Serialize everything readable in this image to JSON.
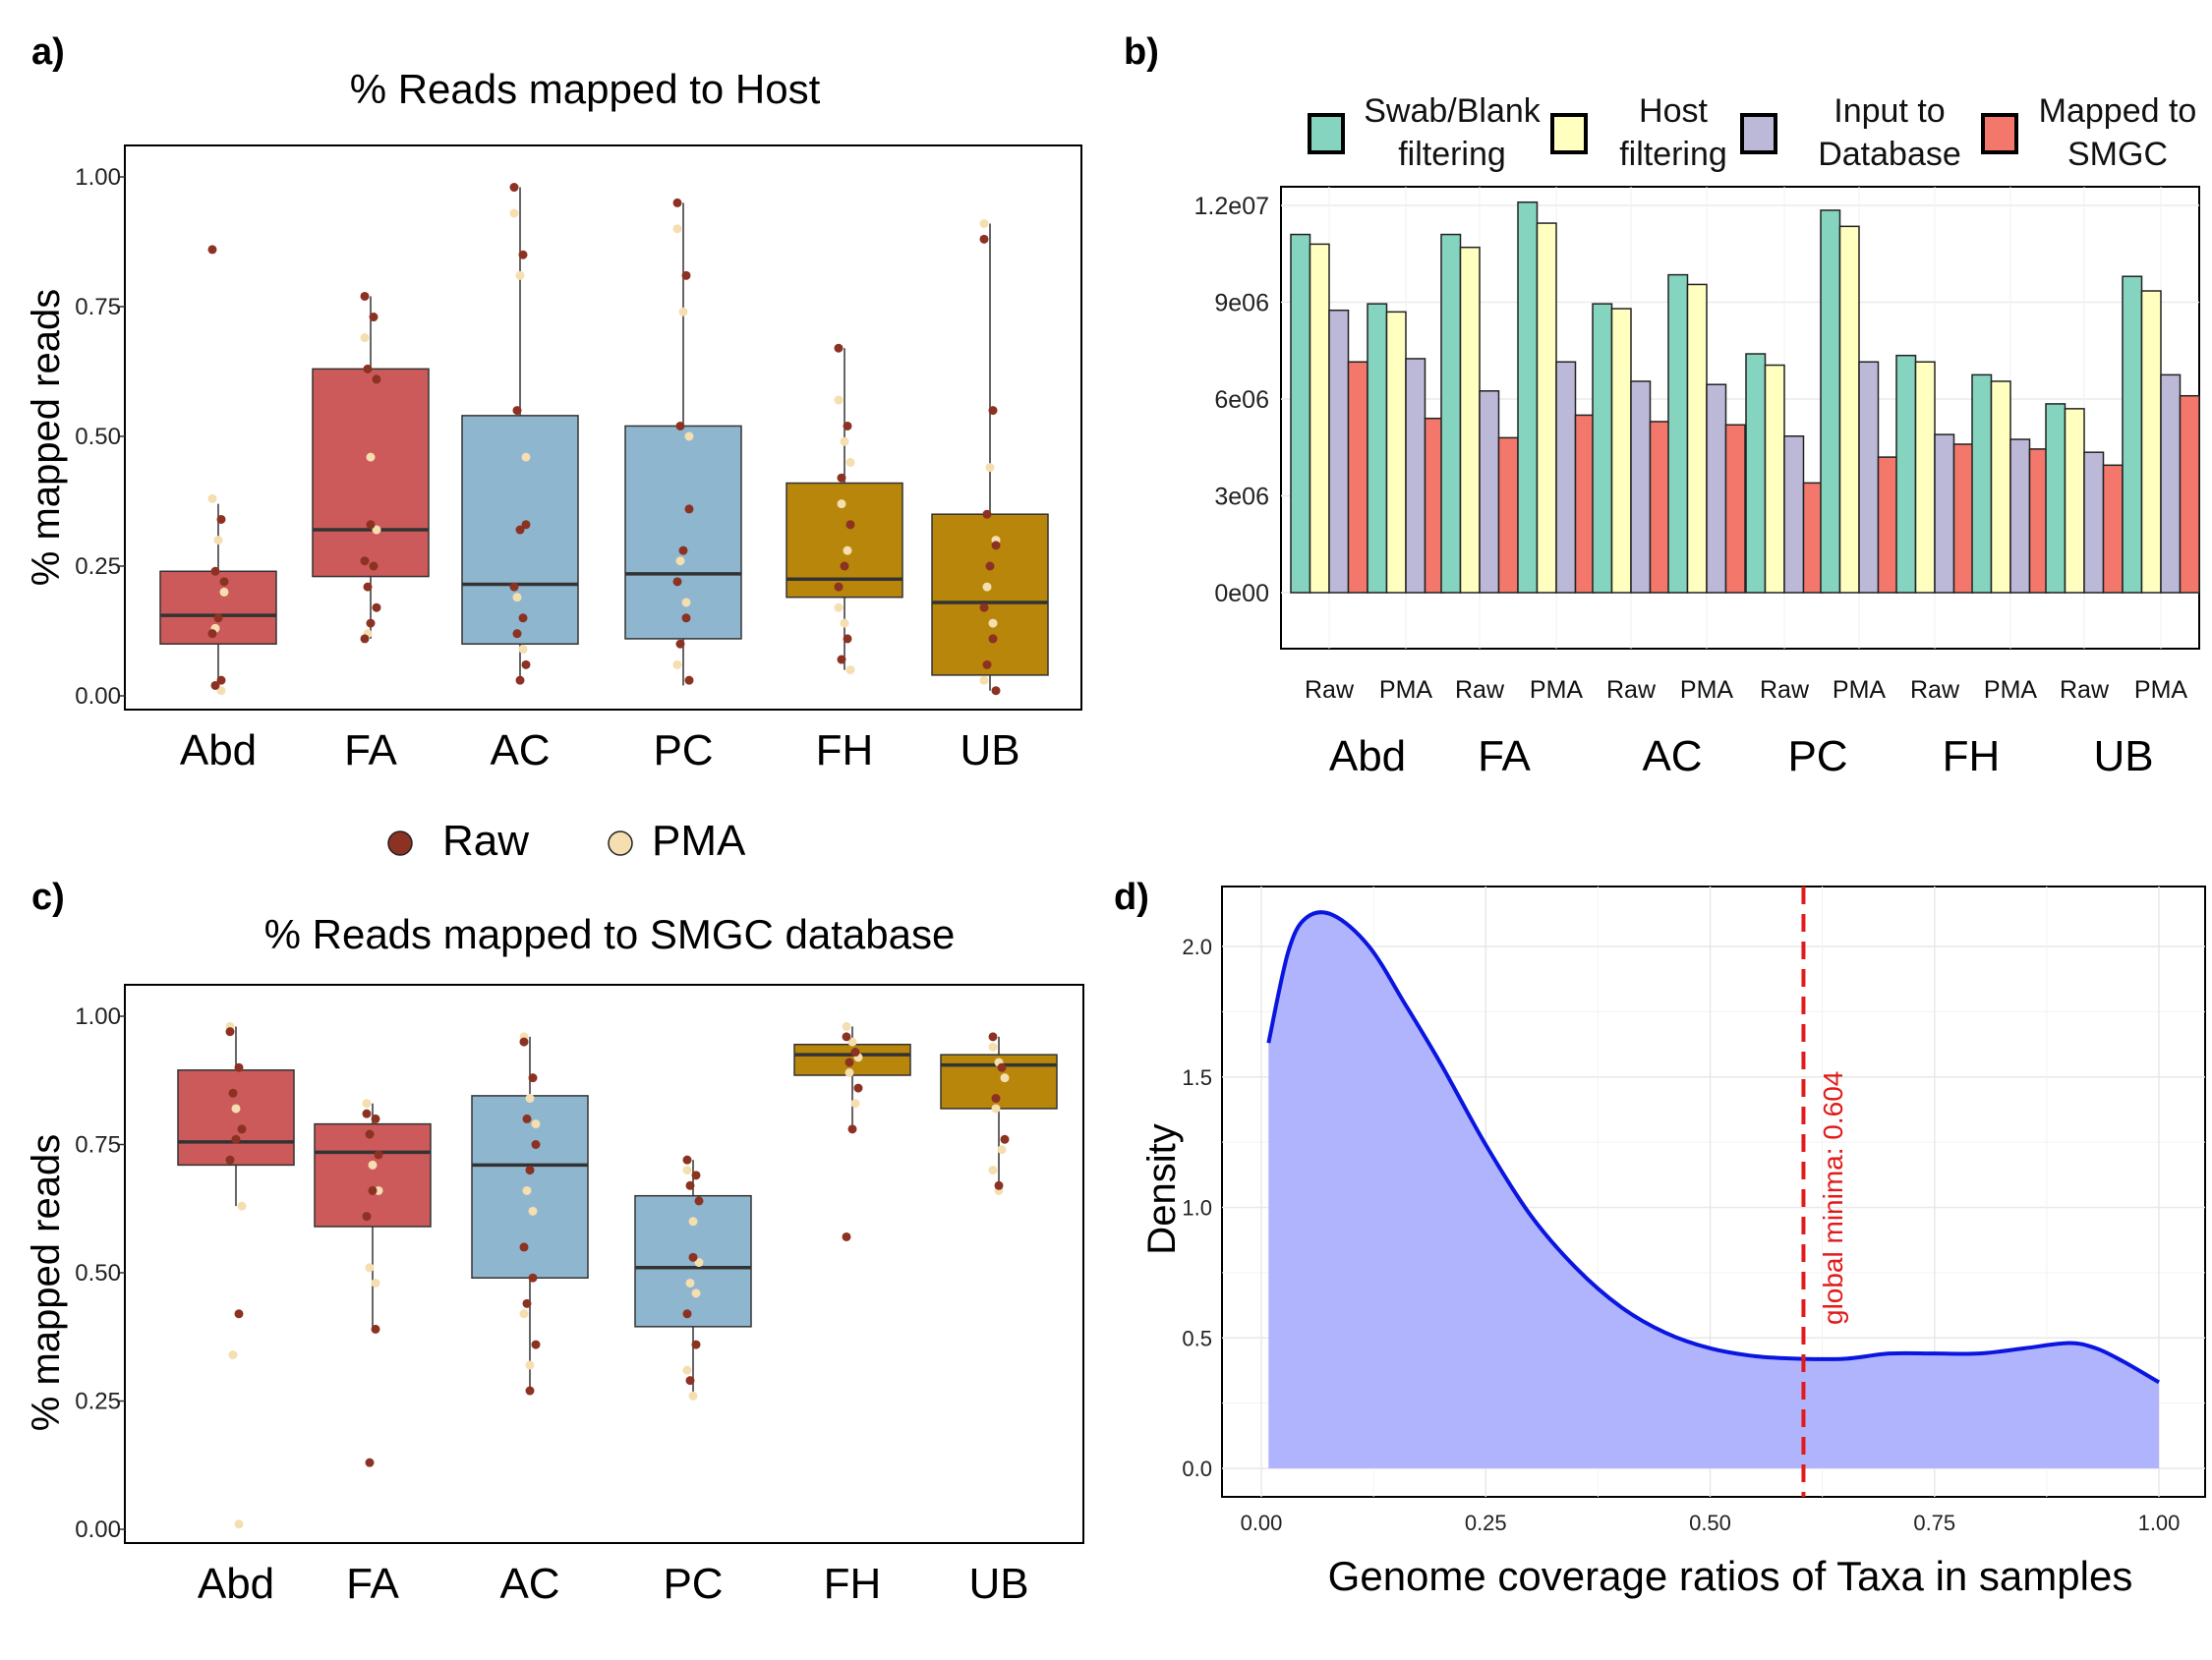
{
  "panels": {
    "a": {
      "label": "a)",
      "title": "% Reads mapped to Host",
      "ylabel": "% mapped reads"
    },
    "b": {
      "label": "b)"
    },
    "c": {
      "label": "c)",
      "title": "% Reads mapped to SMGC database",
      "ylabel": "% mapped reads"
    },
    "d": {
      "label": "d)",
      "xlabel": "Genome coverage ratios of Taxa in samples",
      "ylabel": "Density",
      "annotation": "global minima: 0.604"
    }
  },
  "shared_legend": {
    "items": [
      {
        "label": "Raw",
        "color": "#8b3222"
      },
      {
        "label": "PMA",
        "color": "#f5deb0"
      }
    ]
  },
  "colors": {
    "Abd": "#cc5a5a",
    "FA": "#cc5a5a",
    "AC": "#8fb6cf",
    "PC": "#8fb6cf",
    "FH": "#b8860b",
    "UB": "#b8860b",
    "raw_point": "#8b3222",
    "pma_point": "#f5deb0",
    "swab": "#84d4c0",
    "host": "#ffffc0",
    "input": "#bcb8d8",
    "mapped": "#f4776b",
    "density_fill": "#b0b4fd",
    "density_line": "#0a16e0",
    "vline": "#e21a1a"
  },
  "chart_data": [
    {
      "type": "box",
      "panel": "a",
      "title": "% Reads mapped to Host",
      "ylabel": "% mapped reads",
      "ylim": [
        0,
        1
      ],
      "yticks": [
        0.0,
        0.25,
        0.5,
        0.75,
        1.0
      ],
      "ytick_labels": [
        "0.00",
        "0.25",
        "0.50",
        "0.75",
        "1.00"
      ],
      "categories": [
        "Abd",
        "FA",
        "AC",
        "PC",
        "FH",
        "UB"
      ],
      "boxes": [
        {
          "q1": 0.1,
          "median": 0.155,
          "q3": 0.24,
          "whisker_low": 0.01,
          "whisker_high": 0.37,
          "raw": [
            0.86,
            0.34,
            0.24,
            0.22,
            0.15,
            0.12,
            0.03,
            0.02
          ],
          "pma": [
            0.38,
            0.3,
            0.2,
            0.13,
            0.01
          ]
        },
        {
          "q1": 0.23,
          "median": 0.32,
          "q3": 0.63,
          "whisker_low": 0.11,
          "whisker_high": 0.77,
          "raw": [
            0.77,
            0.73,
            0.63,
            0.61,
            0.33,
            0.26,
            0.25,
            0.21,
            0.17,
            0.14,
            0.11
          ],
          "pma": [
            0.69,
            0.46,
            0.32,
            0.12
          ]
        },
        {
          "q1": 0.1,
          "median": 0.215,
          "q3": 0.54,
          "whisker_low": 0.03,
          "whisker_high": 0.98,
          "raw": [
            0.98,
            0.85,
            0.55,
            0.33,
            0.32,
            0.21,
            0.15,
            0.12,
            0.06,
            0.03
          ],
          "pma": [
            0.93,
            0.81,
            0.46,
            0.19,
            0.09
          ]
        },
        {
          "q1": 0.11,
          "median": 0.235,
          "q3": 0.52,
          "whisker_low": 0.02,
          "whisker_high": 0.95,
          "raw": [
            0.95,
            0.81,
            0.52,
            0.36,
            0.28,
            0.22,
            0.15,
            0.1,
            0.03
          ],
          "pma": [
            0.9,
            0.74,
            0.5,
            0.26,
            0.18,
            0.06
          ]
        },
        {
          "q1": 0.19,
          "median": 0.225,
          "q3": 0.41,
          "whisker_low": 0.05,
          "whisker_high": 0.67,
          "raw": [
            0.67,
            0.52,
            0.42,
            0.33,
            0.25,
            0.21,
            0.11,
            0.07
          ],
          "pma": [
            0.57,
            0.49,
            0.45,
            0.37,
            0.28,
            0.17,
            0.14,
            0.05
          ]
        },
        {
          "q1": 0.04,
          "median": 0.18,
          "q3": 0.35,
          "whisker_low": 0.01,
          "whisker_high": 0.91,
          "raw": [
            0.88,
            0.55,
            0.35,
            0.29,
            0.25,
            0.17,
            0.11,
            0.06,
            0.01
          ],
          "pma": [
            0.91,
            0.44,
            0.3,
            0.21,
            0.14,
            0.03
          ]
        }
      ]
    },
    {
      "type": "bar",
      "panel": "b",
      "groups": [
        "Abd",
        "FA",
        "AC",
        "PC",
        "FH",
        "UB"
      ],
      "subgroups": [
        "Raw",
        "PMA",
        "Raw",
        "PMA",
        "Raw",
        "PMA",
        "Raw",
        "PMA",
        "Raw",
        "PMA",
        "Raw",
        "PMA"
      ],
      "ylim": [
        0,
        12500000
      ],
      "yticks": [
        0,
        3000000,
        6000000,
        9000000,
        12000000
      ],
      "ytick_labels": [
        "0e00",
        "3e06",
        "6e06",
        "9e06",
        "1.2e07"
      ],
      "legend": {
        "placement": "top"
      },
      "series": [
        {
          "name": "Swab/Blank filtering",
          "values": [
            11100000,
            8950000,
            11100000,
            12100000,
            8950000,
            9850000,
            7400000,
            11850000,
            7350000,
            6750000,
            5850000,
            9800000
          ]
        },
        {
          "name": "Host filtering",
          "values": [
            10800000,
            8700000,
            10700000,
            11450000,
            8800000,
            9550000,
            7050000,
            11350000,
            7150000,
            6550000,
            5700000,
            9350000
          ]
        },
        {
          "name": "Input to Database",
          "values": [
            8750000,
            7250000,
            6250000,
            7150000,
            6550000,
            6450000,
            4850000,
            7150000,
            4900000,
            4750000,
            4350000,
            6750000
          ]
        },
        {
          "name": "Mapped to SMGC",
          "values": [
            7150000,
            5400000,
            4800000,
            5500000,
            5300000,
            5200000,
            3400000,
            4200000,
            4600000,
            4450000,
            3950000,
            6100000
          ]
        }
      ]
    },
    {
      "type": "box",
      "panel": "c",
      "title": "% Reads mapped to SMGC database",
      "ylabel": "% mapped reads",
      "ylim": [
        0,
        1
      ],
      "yticks": [
        0.0,
        0.25,
        0.5,
        0.75,
        1.0
      ],
      "ytick_labels": [
        "0.00",
        "0.25",
        "0.50",
        "0.75",
        "1.00"
      ],
      "categories": [
        "Abd",
        "FA",
        "AC",
        "PC",
        "FH",
        "UB"
      ],
      "boxes": [
        {
          "q1": 0.71,
          "median": 0.755,
          "q3": 0.895,
          "whisker_low": 0.63,
          "whisker_high": 0.98,
          "raw": [
            0.97,
            0.9,
            0.85,
            0.78,
            0.76,
            0.72,
            0.42
          ],
          "pma": [
            0.98,
            0.82,
            0.63,
            0.34,
            0.01
          ]
        },
        {
          "q1": 0.59,
          "median": 0.735,
          "q3": 0.79,
          "whisker_low": 0.39,
          "whisker_high": 0.83,
          "raw": [
            0.81,
            0.8,
            0.77,
            0.73,
            0.66,
            0.61,
            0.39,
            0.13
          ],
          "pma": [
            0.83,
            0.71,
            0.66,
            0.51,
            0.48
          ]
        },
        {
          "q1": 0.49,
          "median": 0.71,
          "q3": 0.845,
          "whisker_low": 0.27,
          "whisker_high": 0.96,
          "raw": [
            0.95,
            0.88,
            0.8,
            0.75,
            0.7,
            0.55,
            0.49,
            0.44,
            0.36,
            0.27
          ],
          "pma": [
            0.96,
            0.84,
            0.79,
            0.66,
            0.62,
            0.42,
            0.32
          ]
        },
        {
          "q1": 0.395,
          "median": 0.51,
          "q3": 0.65,
          "whisker_low": 0.26,
          "whisker_high": 0.72,
          "raw": [
            0.72,
            0.69,
            0.67,
            0.64,
            0.53,
            0.42,
            0.36,
            0.29
          ],
          "pma": [
            0.7,
            0.6,
            0.52,
            0.48,
            0.46,
            0.31,
            0.26
          ]
        },
        {
          "q1": 0.885,
          "median": 0.925,
          "q3": 0.945,
          "whisker_low": 0.78,
          "whisker_high": 0.98,
          "raw": [
            0.96,
            0.93,
            0.91,
            0.86,
            0.78,
            0.57
          ],
          "pma": [
            0.98,
            0.95,
            0.92,
            0.89,
            0.83
          ]
        },
        {
          "q1": 0.82,
          "median": 0.905,
          "q3": 0.925,
          "whisker_low": 0.66,
          "whisker_high": 0.96,
          "raw": [
            0.96,
            0.9,
            0.84,
            0.76,
            0.67
          ],
          "pma": [
            0.94,
            0.91,
            0.88,
            0.82,
            0.74,
            0.7,
            0.66
          ]
        }
      ]
    },
    {
      "type": "area",
      "panel": "d",
      "xlabel": "Genome coverage ratios of Taxa in samples",
      "ylabel": "Density",
      "xlim": [
        0,
        1
      ],
      "ylim": [
        0,
        2.2
      ],
      "xticks": [
        0.0,
        0.25,
        0.5,
        0.75,
        1.0
      ],
      "xtick_labels": [
        "0.00",
        "0.25",
        "0.50",
        "0.75",
        "1.00"
      ],
      "yticks": [
        0.0,
        0.5,
        1.0,
        1.5,
        2.0
      ],
      "ytick_labels": [
        "0.0",
        "0.5",
        "1.0",
        "1.5",
        "2.0"
      ],
      "grid": true,
      "x": [
        0.008,
        0.03,
        0.05,
        0.08,
        0.12,
        0.16,
        0.2,
        0.25,
        0.3,
        0.35,
        0.4,
        0.45,
        0.5,
        0.55,
        0.6,
        0.65,
        0.7,
        0.75,
        0.8,
        0.85,
        0.9,
        0.93,
        0.96,
        1.0
      ],
      "y": [
        1.63,
        1.98,
        2.11,
        2.12,
        2.0,
        1.78,
        1.55,
        1.24,
        0.97,
        0.77,
        0.62,
        0.52,
        0.46,
        0.43,
        0.42,
        0.42,
        0.44,
        0.44,
        0.44,
        0.46,
        0.48,
        0.46,
        0.41,
        0.33
      ],
      "vline": 0.604
    }
  ]
}
